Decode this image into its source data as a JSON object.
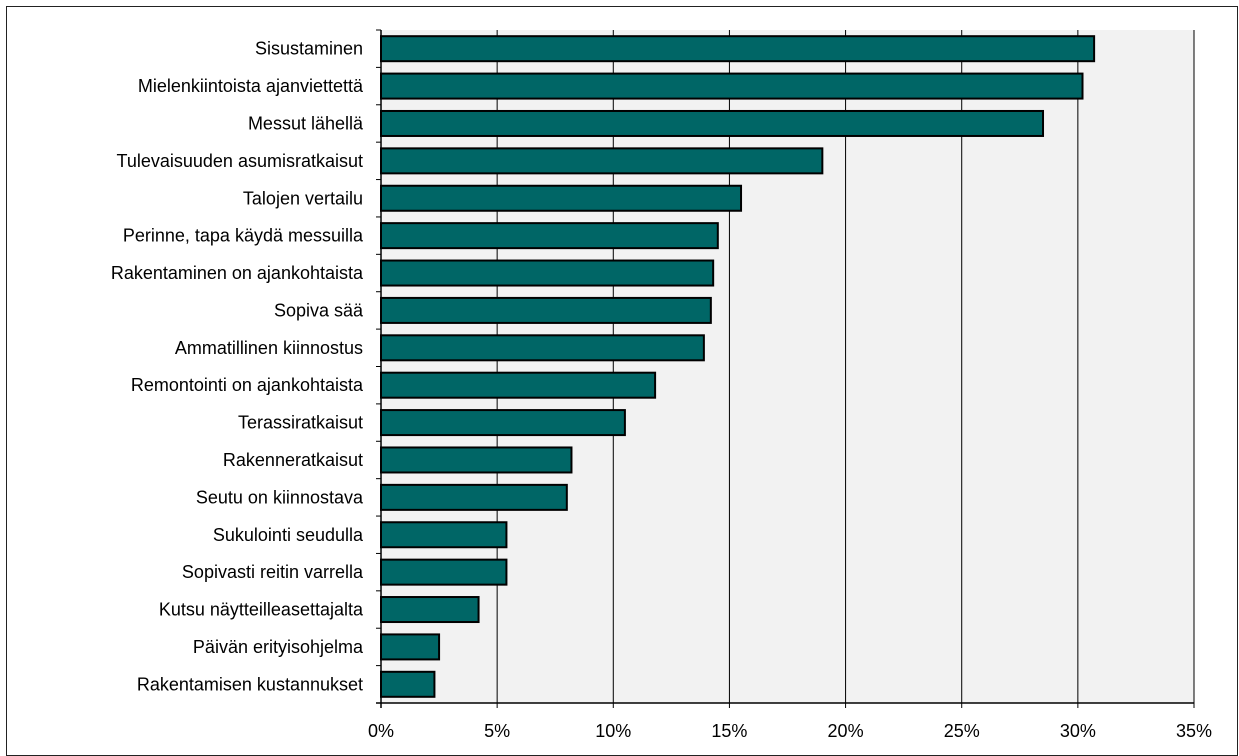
{
  "chart_data": {
    "type": "bar",
    "orientation": "horizontal",
    "title": "",
    "xlabel": "",
    "ylabel": "",
    "categories": [
      "Sisustaminen",
      "Mielenkiintoista ajanviettettä",
      "Messut lähellä",
      "Tulevaisuuden asumisratkaisut",
      "Talojen vertailu",
      "Perinne, tapa käydä messuilla",
      "Rakentaminen on ajankohtaista",
      "Sopiva sää",
      "Ammatillinen kiinnostus",
      "Remontointi on ajankohtaista",
      "Terassiratkaisut",
      "Rakenneratkaisut",
      "Seutu on kiinnostava",
      "Sukulointi seudulla",
      "Sopivasti reitin varrella",
      "Kutsu näytteilleasettajalta",
      "Päivän erityisohjelma",
      "Rakentamisen kustannukset"
    ],
    "values": [
      30.7,
      30.2,
      28.5,
      19.0,
      15.5,
      14.5,
      14.3,
      14.2,
      13.9,
      11.8,
      10.5,
      8.2,
      8.0,
      5.4,
      5.4,
      4.2,
      2.5,
      2.3
    ],
    "xlim": [
      0,
      35
    ],
    "xticks": [
      0,
      5,
      10,
      15,
      20,
      25,
      30,
      35
    ],
    "xtick_labels": [
      "0%",
      "5%",
      "10%",
      "15%",
      "20%",
      "25%",
      "30%",
      "35%"
    ],
    "grid": "vertical",
    "colors": {
      "bar_fill": "#006666",
      "bar_edge": "#000000",
      "plot_bg": "#f2f2f2",
      "grid": "#000000"
    }
  }
}
